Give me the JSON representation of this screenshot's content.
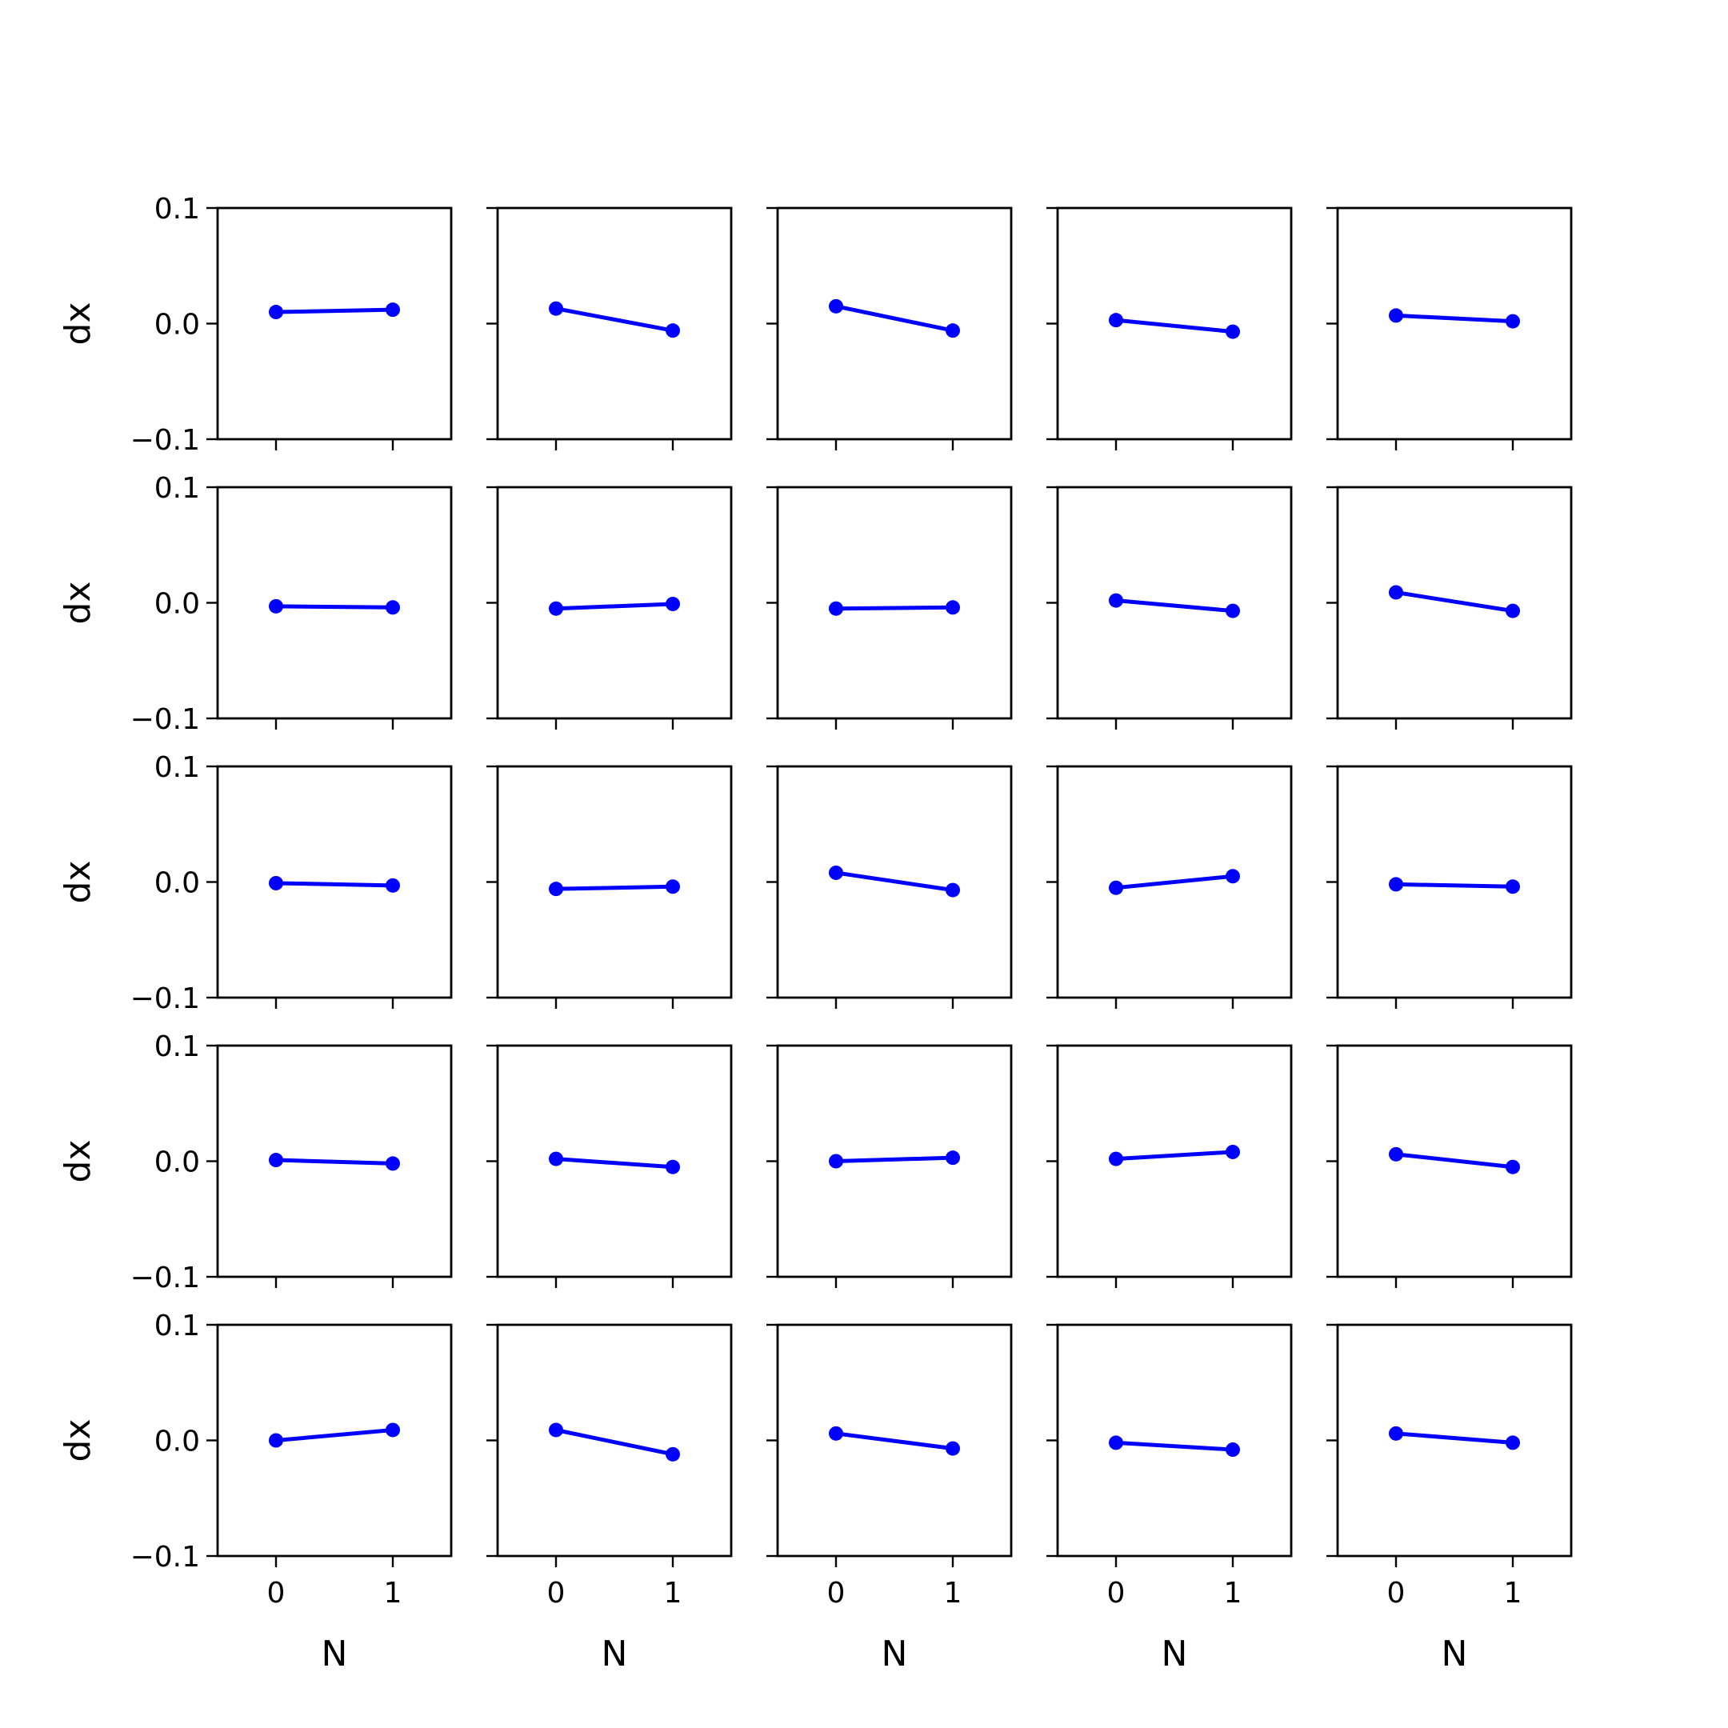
{
  "figure": {
    "background": "#ffffff",
    "line_color": "#0000ff"
  },
  "chart_data": {
    "type": "line",
    "layout": "grid",
    "rows": 5,
    "cols": 5,
    "x": [
      0,
      1
    ],
    "xticks": [
      "0",
      "1"
    ],
    "xlim": [
      -0.5,
      1.5
    ],
    "yticks": [
      "−0.1",
      "0.0",
      "0.1"
    ],
    "ytick_values": [
      -0.1,
      0.0,
      0.1
    ],
    "ylim": [
      -0.1,
      0.1
    ],
    "xlabel": "N",
    "ylabel": "dx",
    "marker": "circle",
    "grid": false,
    "panels": [
      [
        [
          0.01,
          0.012
        ],
        [
          0.013,
          -0.006
        ],
        [
          0.015,
          -0.006
        ],
        [
          0.003,
          -0.007
        ],
        [
          0.007,
          0.002
        ]
      ],
      [
        [
          -0.003,
          -0.004
        ],
        [
          -0.005,
          -0.001
        ],
        [
          -0.005,
          -0.004
        ],
        [
          0.002,
          -0.007
        ],
        [
          0.009,
          -0.007
        ]
      ],
      [
        [
          -0.001,
          -0.003
        ],
        [
          -0.006,
          -0.004
        ],
        [
          0.008,
          -0.007
        ],
        [
          -0.005,
          0.005
        ],
        [
          -0.002,
          -0.004
        ]
      ],
      [
        [
          0.001,
          -0.002
        ],
        [
          0.002,
          -0.005
        ],
        [
          0.0,
          0.003
        ],
        [
          0.002,
          0.008
        ],
        [
          0.006,
          -0.005
        ]
      ],
      [
        [
          0.0,
          0.009
        ],
        [
          0.009,
          -0.012
        ],
        [
          0.006,
          -0.007
        ],
        [
          -0.002,
          -0.008
        ],
        [
          0.006,
          -0.002
        ]
      ]
    ]
  }
}
